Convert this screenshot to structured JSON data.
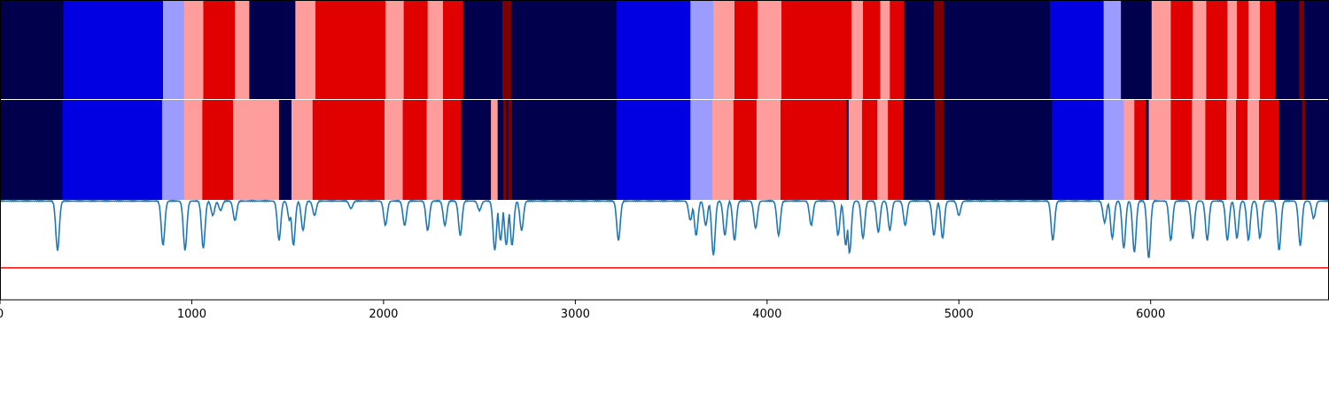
{
  "chart_data": {
    "type": "heatmap",
    "x_range": [
      0,
      6930
    ],
    "x_ticks": [
      0,
      1000,
      2000,
      3000,
      4000,
      5000,
      6000
    ],
    "colors": {
      "navy": "#00004c",
      "blue": "#0000e0",
      "light_blue": "#9c9cff",
      "pink": "#ff9c9c",
      "red": "#e00000",
      "dark_red": "#7c0000",
      "signal_line": "#1f77b4",
      "threshold_line": "#ff0000",
      "separator": "#ffffff"
    },
    "segmentation_rows": [
      {
        "segments": [
          [
            0,
            330,
            "navy"
          ],
          [
            330,
            850,
            "blue"
          ],
          [
            850,
            960,
            "light_blue"
          ],
          [
            960,
            1060,
            "pink"
          ],
          [
            1060,
            1225,
            "red"
          ],
          [
            1225,
            1300,
            "pink"
          ],
          [
            1300,
            1540,
            "navy"
          ],
          [
            1540,
            1645,
            "pink"
          ],
          [
            1645,
            2010,
            "red"
          ],
          [
            2010,
            2105,
            "pink"
          ],
          [
            2105,
            2230,
            "red"
          ],
          [
            2230,
            2310,
            "pink"
          ],
          [
            2310,
            2415,
            "red"
          ],
          [
            2415,
            2620,
            "navy"
          ],
          [
            2620,
            2665,
            "dark_red"
          ],
          [
            2665,
            3215,
            "navy"
          ],
          [
            3215,
            3600,
            "blue"
          ],
          [
            3600,
            3720,
            "light_blue"
          ],
          [
            3720,
            3830,
            "pink"
          ],
          [
            3830,
            3950,
            "red"
          ],
          [
            3950,
            4075,
            "pink"
          ],
          [
            4075,
            4440,
            "red"
          ],
          [
            4440,
            4500,
            "pink"
          ],
          [
            4500,
            4590,
            "red"
          ],
          [
            4590,
            4640,
            "pink"
          ],
          [
            4640,
            4715,
            "red"
          ],
          [
            4715,
            4870,
            "navy"
          ],
          [
            4870,
            4920,
            "dark_red"
          ],
          [
            4920,
            5475,
            "navy"
          ],
          [
            5475,
            5755,
            "blue"
          ],
          [
            5755,
            5845,
            "light_blue"
          ],
          [
            5845,
            6005,
            "navy"
          ],
          [
            6005,
            6105,
            "pink"
          ],
          [
            6105,
            6220,
            "red"
          ],
          [
            6220,
            6290,
            "pink"
          ],
          [
            6290,
            6400,
            "red"
          ],
          [
            6400,
            6450,
            "pink"
          ],
          [
            6450,
            6510,
            "red"
          ],
          [
            6510,
            6570,
            "pink"
          ],
          [
            6570,
            6650,
            "red"
          ],
          [
            6650,
            6775,
            "navy"
          ],
          [
            6775,
            6800,
            "dark_red"
          ],
          [
            6800,
            6930,
            "navy"
          ]
        ]
      },
      {
        "segments": [
          [
            0,
            325,
            "navy"
          ],
          [
            325,
            845,
            "blue"
          ],
          [
            845,
            960,
            "light_blue"
          ],
          [
            960,
            1055,
            "pink"
          ],
          [
            1055,
            1215,
            "red"
          ],
          [
            1215,
            1455,
            "pink"
          ],
          [
            1455,
            1520,
            "navy"
          ],
          [
            1520,
            1630,
            "pink"
          ],
          [
            1630,
            2005,
            "red"
          ],
          [
            2005,
            2100,
            "pink"
          ],
          [
            2100,
            2225,
            "red"
          ],
          [
            2225,
            2310,
            "pink"
          ],
          [
            2310,
            2405,
            "red"
          ],
          [
            2405,
            2560,
            "navy"
          ],
          [
            2560,
            2595,
            "pink"
          ],
          [
            2595,
            2625,
            "navy"
          ],
          [
            2625,
            2640,
            "dark_red"
          ],
          [
            2640,
            2650,
            "navy"
          ],
          [
            2650,
            2670,
            "dark_red"
          ],
          [
            2670,
            3215,
            "navy"
          ],
          [
            3215,
            3600,
            "blue"
          ],
          [
            3600,
            3715,
            "light_blue"
          ],
          [
            3715,
            3825,
            "pink"
          ],
          [
            3825,
            3945,
            "red"
          ],
          [
            3945,
            4070,
            "pink"
          ],
          [
            4070,
            4415,
            "red"
          ],
          [
            4415,
            4425,
            "navy"
          ],
          [
            4425,
            4495,
            "pink"
          ],
          [
            4495,
            4575,
            "red"
          ],
          [
            4575,
            4630,
            "pink"
          ],
          [
            4630,
            4710,
            "red"
          ],
          [
            4710,
            4875,
            "navy"
          ],
          [
            4875,
            4920,
            "dark_red"
          ],
          [
            4920,
            5485,
            "navy"
          ],
          [
            5485,
            5755,
            "blue"
          ],
          [
            5755,
            5860,
            "light_blue"
          ],
          [
            5860,
            5915,
            "pink"
          ],
          [
            5915,
            5975,
            "red"
          ],
          [
            5975,
            5990,
            "navy"
          ],
          [
            5990,
            6105,
            "pink"
          ],
          [
            6105,
            6215,
            "red"
          ],
          [
            6215,
            6285,
            "pink"
          ],
          [
            6285,
            6395,
            "red"
          ],
          [
            6395,
            6445,
            "pink"
          ],
          [
            6445,
            6505,
            "red"
          ],
          [
            6505,
            6565,
            "pink"
          ],
          [
            6565,
            6670,
            "red"
          ],
          [
            6670,
            6790,
            "navy"
          ],
          [
            6790,
            6805,
            "dark_red"
          ],
          [
            6805,
            6930,
            "navy"
          ]
        ]
      }
    ],
    "signal": {
      "y_range": [
        0,
        1
      ],
      "threshold": 0.32,
      "baseline": 0.995,
      "dips": [
        [
          300,
          0.5
        ],
        [
          850,
          0.55
        ],
        [
          965,
          0.5
        ],
        [
          1060,
          0.52
        ],
        [
          1110,
          0.85
        ],
        [
          1150,
          0.9
        ],
        [
          1225,
          0.8
        ],
        [
          1455,
          0.6
        ],
        [
          1510,
          0.8
        ],
        [
          1530,
          0.55
        ],
        [
          1580,
          0.7
        ],
        [
          1640,
          0.85
        ],
        [
          1830,
          0.92
        ],
        [
          2010,
          0.75
        ],
        [
          2110,
          0.75
        ],
        [
          2230,
          0.7
        ],
        [
          2320,
          0.75
        ],
        [
          2400,
          0.65
        ],
        [
          2500,
          0.9
        ],
        [
          2580,
          0.5
        ],
        [
          2610,
          0.6
        ],
        [
          2640,
          0.55
        ],
        [
          2670,
          0.55
        ],
        [
          2720,
          0.7
        ],
        [
          3225,
          0.6
        ],
        [
          3600,
          0.8
        ],
        [
          3630,
          0.65
        ],
        [
          3680,
          0.75
        ],
        [
          3720,
          0.45
        ],
        [
          3780,
          0.65
        ],
        [
          3830,
          0.6
        ],
        [
          3940,
          0.72
        ],
        [
          4060,
          0.65
        ],
        [
          4230,
          0.75
        ],
        [
          4370,
          0.65
        ],
        [
          4410,
          0.55
        ],
        [
          4430,
          0.47
        ],
        [
          4500,
          0.62
        ],
        [
          4580,
          0.68
        ],
        [
          4640,
          0.7
        ],
        [
          4720,
          0.75
        ],
        [
          4870,
          0.65
        ],
        [
          4915,
          0.62
        ],
        [
          5000,
          0.85
        ],
        [
          5490,
          0.6
        ],
        [
          5760,
          0.78
        ],
        [
          5800,
          0.62
        ],
        [
          5860,
          0.52
        ],
        [
          5915,
          0.48
        ],
        [
          5990,
          0.42
        ],
        [
          6105,
          0.6
        ],
        [
          6220,
          0.62
        ],
        [
          6295,
          0.6
        ],
        [
          6400,
          0.6
        ],
        [
          6450,
          0.62
        ],
        [
          6510,
          0.6
        ],
        [
          6570,
          0.62
        ],
        [
          6670,
          0.5
        ],
        [
          6780,
          0.55
        ],
        [
          6850,
          0.82
        ]
      ]
    }
  }
}
